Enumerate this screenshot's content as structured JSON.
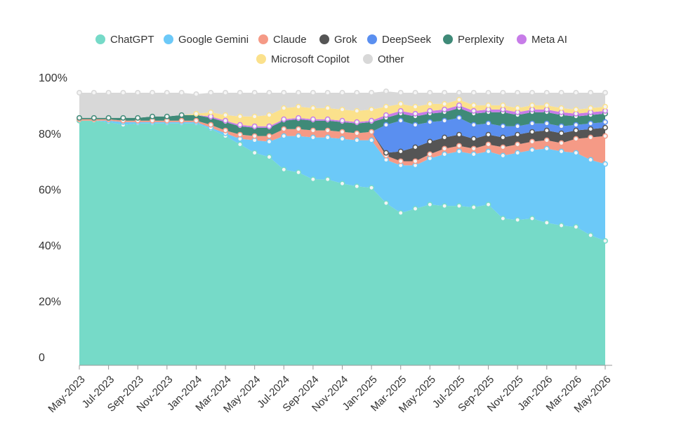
{
  "chart_data": {
    "type": "stacked_area",
    "categories": [
      "May-2023",
      null,
      "Jul-2023",
      null,
      "Sep-2023",
      null,
      "Nov-2023",
      null,
      "Jan-2024",
      null,
      "Mar-2024",
      null,
      "May-2024",
      null,
      "Jul-2024",
      null,
      "Sep-2024",
      null,
      "Nov-2024",
      null,
      "Jan-2025",
      null,
      "Mar-2025",
      null,
      "May-2025",
      null,
      "Jul-2025",
      null,
      "Sep-2025",
      null,
      "Nov-2025",
      null,
      "Jan-2026",
      null,
      "Mar-2026",
      null,
      "May-2026"
    ],
    "series": [
      {
        "name": "ChatGPT",
        "color": "#76dac8",
        "values": [
          87.5,
          87.5,
          87,
          86,
          86.5,
          86.5,
          86.5,
          86.5,
          86.5,
          84.5,
          82,
          79,
          76,
          74.5,
          70,
          69,
          66.5,
          66.5,
          65,
          64,
          63.5,
          58,
          54.5,
          56,
          57.5,
          57,
          57,
          56.5,
          57.5,
          52.5,
          52,
          52.5,
          51,
          50,
          49.5,
          46.5,
          44.5
        ]
      },
      {
        "name": "Google Gemini",
        "color": "#6cc9f8",
        "values": [
          0,
          0,
          0.5,
          1,
          0.5,
          0.5,
          0.5,
          0.5,
          0.5,
          0.5,
          1,
          2,
          4.5,
          5.5,
          12,
          13,
          15,
          15,
          16,
          16.5,
          17,
          15.5,
          17,
          15.5,
          16.5,
          18.5,
          19.5,
          19,
          19,
          22.5,
          24,
          24.5,
          26.5,
          26.5,
          26.5,
          27,
          27.5
        ]
      },
      {
        "name": "Claude",
        "color": "#f59a86",
        "values": [
          0.5,
          0.5,
          0.5,
          0.5,
          0.5,
          0.5,
          0.5,
          0.5,
          0.5,
          1,
          1,
          1.5,
          1.5,
          2,
          2.5,
          2.5,
          2.5,
          2.5,
          2.5,
          2.5,
          3,
          1.5,
          1.5,
          1.5,
          1.5,
          2,
          2,
          2,
          2.5,
          3,
          3,
          3,
          3,
          3,
          5,
          8,
          10
        ]
      },
      {
        "name": "Grok",
        "color": "#555555",
        "values": [
          0,
          0,
          0,
          0,
          0,
          0,
          0,
          0,
          0,
          0,
          0,
          0,
          0,
          0,
          0,
          0,
          0,
          0,
          0,
          0,
          0,
          1,
          3.5,
          5,
          4.5,
          4,
          4,
          3.5,
          3.5,
          3.5,
          3.5,
          3.5,
          3.5,
          3.5,
          3,
          3,
          3
        ]
      },
      {
        "name": "DeepSeek",
        "color": "#5a8ff0",
        "values": [
          0,
          0,
          0,
          0,
          0,
          0,
          0,
          0,
          0,
          0,
          0,
          0,
          0,
          0,
          0,
          0,
          0,
          0,
          0,
          0,
          0,
          10,
          11,
          8,
          7,
          6,
          6,
          5,
          4,
          4,
          3,
          3,
          2.5,
          2.5,
          2,
          2,
          2
        ]
      },
      {
        "name": "Perplexity",
        "color": "#3f8a78",
        "values": [
          0.5,
          0.5,
          0.5,
          1,
          1,
          1.5,
          1.5,
          2,
          2,
          2.5,
          3,
          3,
          3,
          3,
          3,
          3.5,
          3.5,
          3.5,
          3.5,
          3.5,
          3.5,
          2.5,
          2.5,
          3,
          3,
          3,
          3.5,
          4,
          4,
          5,
          4,
          4,
          4,
          4,
          3,
          3,
          3
        ]
      },
      {
        "name": "Meta AI",
        "color": "#c77ce8",
        "values": [
          0,
          0,
          0,
          0,
          0,
          0,
          0,
          0,
          0,
          0.5,
          0.5,
          0.5,
          0.5,
          0.5,
          0.5,
          0.5,
          0.5,
          0.5,
          0.5,
          0.5,
          0.5,
          1,
          1,
          1,
          1,
          1,
          1,
          1,
          1,
          1,
          1,
          1,
          1,
          1,
          1,
          1,
          1
        ]
      },
      {
        "name": "Microsoft Copilot",
        "color": "#fbe18c",
        "values": [
          0,
          0,
          0,
          0,
          0,
          0,
          0,
          0,
          0.5,
          1.5,
          2,
          3,
          3.5,
          4,
          4,
          4,
          4,
          4,
          4,
          4,
          4,
          3,
          2.5,
          2.5,
          2.5,
          2,
          2,
          2,
          1.5,
          1.5,
          1.5,
          1.5,
          1.5,
          1.5,
          1.5,
          1.5,
          1.5
        ]
      },
      {
        "name": "Other",
        "color": "#d8d8d8",
        "values": [
          9,
          9,
          9,
          9,
          9,
          8.5,
          8.5,
          8,
          7,
          7,
          8,
          8.5,
          8.5,
          8,
          5.5,
          5,
          5.5,
          5.5,
          6,
          6.5,
          6,
          5.5,
          4,
          5,
          4,
          4,
          2.5,
          4.5,
          4.5,
          4.5,
          5.5,
          4.5,
          4.5,
          5.5,
          6,
          5.5,
          5
        ]
      }
    ],
    "ylim": [
      0,
      100
    ],
    "yticks": [
      0,
      {
        "value": 20,
        "label": "20%"
      },
      {
        "value": 40,
        "label": "40%"
      },
      {
        "value": 60,
        "label": "60%"
      },
      {
        "value": 80,
        "label": "80%"
      },
      {
        "value": 100,
        "label": "100%"
      }
    ]
  }
}
